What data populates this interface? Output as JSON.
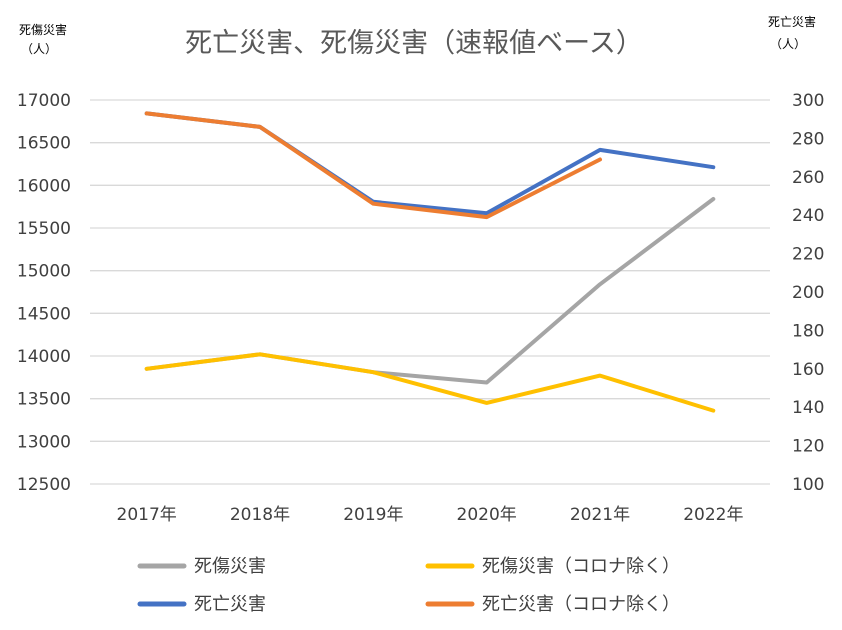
{
  "chart_data": {
    "type": "line",
    "title": "死亡災害、死傷災害（速報値ベース）",
    "left_axis": {
      "unit_line1": "死傷災害",
      "unit_line2": "（人）",
      "ylim": [
        12500,
        17000
      ],
      "ticks": [
        12500,
        13000,
        13500,
        14000,
        14500,
        15000,
        15500,
        16000,
        16500,
        17000
      ]
    },
    "right_axis": {
      "unit_line1": "死亡災害",
      "unit_line2": "（人）",
      "ylim": [
        100,
        300
      ],
      "ticks": [
        100,
        120,
        140,
        160,
        180,
        200,
        220,
        240,
        260,
        280,
        300
      ]
    },
    "categories": [
      "2017年",
      "2018年",
      "2019年",
      "2020年",
      "2021年",
      "2022年"
    ],
    "grid": true,
    "legend_position": "bottom",
    "series": [
      {
        "name": "死傷災害",
        "axis": "left",
        "color": "#a5a5a5",
        "values": [
          13850,
          14020,
          13810,
          13690,
          14840,
          15840
        ]
      },
      {
        "name": "死傷災害（コロナ除く）",
        "axis": "left",
        "color": "#ffc000",
        "values": [
          13850,
          14020,
          13810,
          13450,
          13770,
          13360
        ]
      },
      {
        "name": "死亡災害",
        "axis": "right",
        "color": "#4472c4",
        "values": [
          293,
          286,
          247,
          241,
          274,
          265
        ]
      },
      {
        "name": "死亡災害（コロナ除く）",
        "axis": "right",
        "color": "#ed7d31",
        "values": [
          293,
          286,
          246,
          239,
          269,
          null
        ]
      }
    ]
  }
}
